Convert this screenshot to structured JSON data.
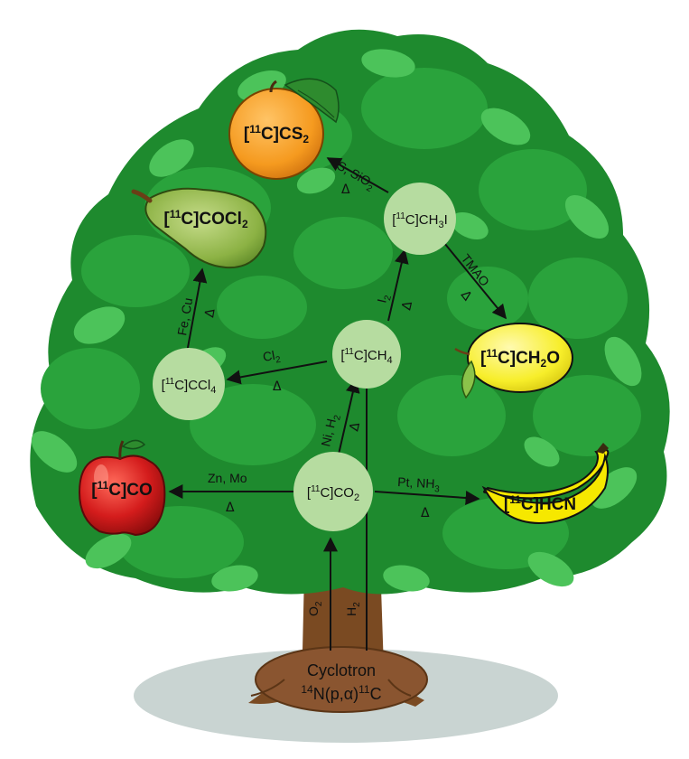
{
  "diagram": {
    "base": {
      "line1": "Cyclotron",
      "line2_pre": "14",
      "line2_mid": "N(p,α)",
      "line2_sup": "11",
      "line2_post": "C"
    },
    "iso": "11",
    "nodes": {
      "co2": {
        "pre": "[",
        "post": "C]CO",
        "sub": "2",
        "tail": ""
      },
      "ch4": {
        "pre": "[",
        "post": "C]CH",
        "sub": "4",
        "tail": ""
      },
      "ccl4": {
        "pre": "[",
        "post": "C]CCl",
        "sub": "4",
        "tail": ""
      },
      "ch3i": {
        "pre": "[",
        "post": "C]CH",
        "sub": "3",
        "tail": "I"
      }
    },
    "fruits": {
      "co": {
        "pre": "[",
        "post": "C]CO"
      },
      "hcn": {
        "pre": "[",
        "post": "C]HCN"
      },
      "cocl2": {
        "pre": "[",
        "post": "C]COCl",
        "sub": "2"
      },
      "cs2": {
        "pre": "[",
        "post": "C]CS",
        "sub": "2"
      },
      "ch2o": {
        "pre": "[",
        "post": "C]CH",
        "sub": "2",
        "tail": "O"
      }
    },
    "reactions": {
      "o2": {
        "text": "O",
        "sub": "2"
      },
      "h2": {
        "text": "H",
        "sub": "2"
      },
      "zn_mo": {
        "text": "Zn, Mo",
        "delta": "Δ"
      },
      "pt_nh3": {
        "text": "Pt, NH",
        "sub": "3",
        "delta": "Δ"
      },
      "ni_h2": {
        "text": "Ni, H",
        "sub": "2",
        "delta": "Δ"
      },
      "cl2": {
        "text": "Cl",
        "sub": "2",
        "delta": "Δ"
      },
      "fe_cu": {
        "text": "Fe, Cu",
        "delta": "Δ"
      },
      "i2": {
        "text": "I",
        "sub": "2",
        "delta": "Δ"
      },
      "s_sio2": {
        "text": "S, SiO",
        "sub": "2",
        "delta": "Δ"
      },
      "tmao": {
        "text": "TMAO",
        "delta": "Δ"
      }
    }
  },
  "colors": {
    "leaf_dark": "#1e8a2e",
    "leaf_mid": "#2aa33c",
    "leaf_light": "#4cc35a",
    "trunk": "#7a4a22",
    "shadow": "#c9d4d2",
    "node_fill": "#b6dca0",
    "apple": "#d41c1c",
    "banana": "#f6e800",
    "pear": "#86ad3e",
    "orange": "#f59a1f",
    "lemon": "#f7ee2a"
  }
}
